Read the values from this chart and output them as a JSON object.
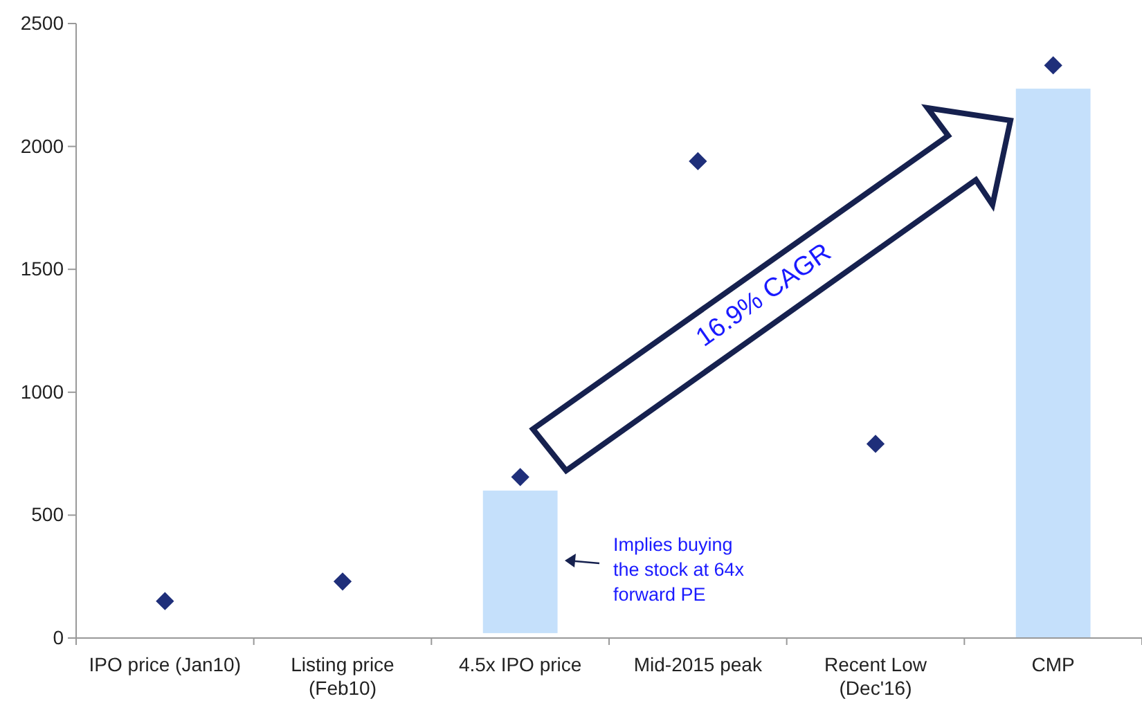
{
  "chart_data": {
    "type": "bar",
    "categories": [
      "IPO price (Jan10)",
      "Listing price\n(Feb10)",
      "4.5x IPO price",
      "Mid-2015 peak",
      "Recent Low\n(Dec'16)",
      "CMP"
    ],
    "series": [
      {
        "color": "#c5e0fb",
        "values": [
          null,
          null,
          580,
          null,
          null,
          2235
        ],
        "base": [
          null,
          null,
          20,
          null,
          null,
          0
        ]
      },
      {
        "type": "scatter",
        "color": "#1f2f7a",
        "marker": "diamond",
        "x": [
          "IPO price (Jan10)",
          "Listing price\n(Feb10)",
          "4.5x IPO price",
          "Mid-2015 peak",
          "Recent Low\n(Dec'16)",
          "CMP"
        ],
        "values": [
          150,
          230,
          655,
          1940,
          790,
          2330
        ]
      }
    ],
    "ylim": [
      0,
      2500
    ],
    "yticks": [
      0,
      500,
      1000,
      1500,
      2000,
      2500
    ],
    "grid": false,
    "annotations": [
      "16.9% CAGR",
      "Implies buying\nthe stock at 64x\nforward PE"
    ]
  }
}
